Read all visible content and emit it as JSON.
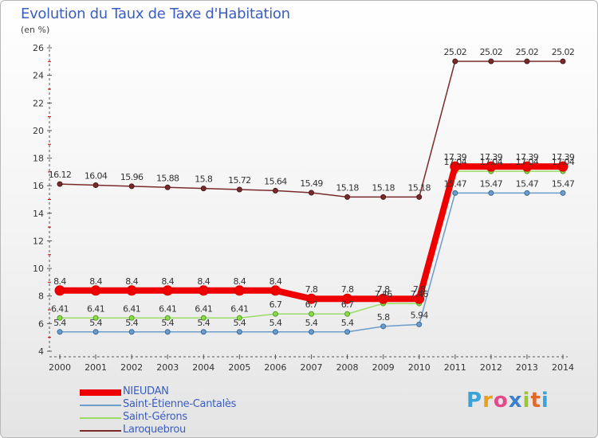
{
  "header": {
    "title": "Evolution du Taux de Taxe d'Habitation",
    "unit": "(en %)"
  },
  "brand": {
    "letters": [
      "P",
      "r",
      "o",
      "x",
      "i",
      "t",
      "i"
    ],
    "colors": [
      "#3aa3d8",
      "#e8a020",
      "#e44a8a",
      "#3a7fd0",
      "#9bc43a",
      "#e06a2a",
      "#3aa3d8"
    ]
  },
  "chart_data": {
    "type": "line",
    "title": "Evolution du Taux de Taxe d'Habitation",
    "ylabel": "(en %)",
    "xlabel": "",
    "x": [
      "2000",
      "2001",
      "2002",
      "2003",
      "2004",
      "2005",
      "2006",
      "2007",
      "2008",
      "2009",
      "2010",
      "2011",
      "2012",
      "2013",
      "2014"
    ],
    "ylim": [
      4,
      26
    ],
    "yticks": [
      "4",
      "6",
      "8",
      "10",
      "12",
      "14",
      "16",
      "18",
      "20",
      "22",
      "24",
      "26"
    ],
    "grid": false,
    "legend_position": "bottom-left",
    "series": [
      {
        "name": "NIEUDAN",
        "color": "#ee0000",
        "values": [
          8.4,
          8.4,
          8.4,
          8.4,
          8.4,
          8.4,
          8.4,
          7.8,
          7.8,
          7.8,
          7.8,
          17.39,
          17.39,
          17.39,
          17.39
        ],
        "labels": [
          "8.4",
          "8.4",
          "8.4",
          "8.4",
          "8.4",
          "8.4",
          "8.4",
          "7.8",
          "7.8",
          "7.8",
          "7.8",
          "17.39",
          "17.39",
          "17.39",
          "17.39"
        ]
      },
      {
        "name": "Saint-Étienne-Cantalès",
        "color": "#6a9ccc",
        "values": [
          5.4,
          5.4,
          5.4,
          5.4,
          5.4,
          5.4,
          5.4,
          5.4,
          5.4,
          5.8,
          5.94,
          15.47,
          15.47,
          15.47,
          15.47
        ],
        "labels": [
          "5.4",
          "5.4",
          "5.4",
          "5.4",
          "5.4",
          "5.4",
          "5.4",
          "5.4",
          "5.4",
          "5.8",
          "5.94",
          "15.47",
          "15.47",
          "15.47",
          "15.47"
        ]
      },
      {
        "name": "Saint-Gérons",
        "color": "#99dd66",
        "values": [
          6.41,
          6.41,
          6.41,
          6.41,
          6.41,
          6.41,
          6.7,
          6.7,
          6.7,
          7.46,
          7.46,
          17.04,
          17.04,
          17.04,
          17.04
        ],
        "labels": [
          "6.41",
          "6.41",
          "6.41",
          "6.41",
          "6.41",
          "6.41",
          "6.7",
          "6.7",
          "6.7",
          "7.46",
          "7.46",
          "17.04",
          "17.04",
          "17.04",
          "17.04"
        ]
      },
      {
        "name": "Laroquebrou",
        "color": "#7a2a2a",
        "values": [
          16.12,
          16.04,
          15.96,
          15.88,
          15.8,
          15.72,
          15.64,
          15.49,
          15.18,
          15.18,
          15.18,
          25.02,
          25.02,
          25.02,
          25.02
        ],
        "labels": [
          "16.12",
          "16.04",
          "15.96",
          "15.88",
          "15.8",
          "15.72",
          "15.64",
          "15.49",
          "15.18",
          "15.18",
          "15.18",
          "25.02",
          "25.02",
          "25.02",
          "25.02"
        ]
      }
    ]
  }
}
